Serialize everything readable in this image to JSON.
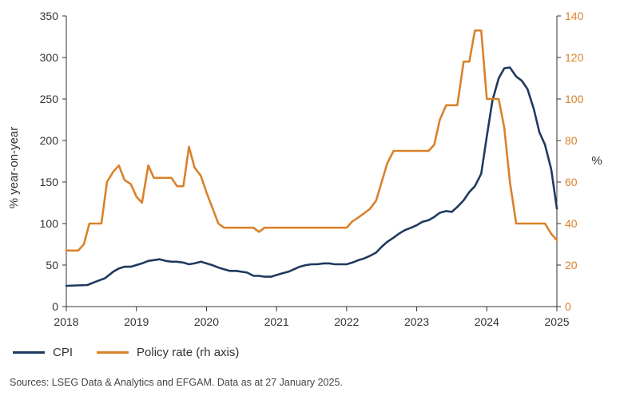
{
  "chart_data": {
    "type": "line",
    "x_ticks": [
      "2018",
      "2019",
      "2020",
      "2021",
      "2022",
      "2023",
      "2024",
      "2025"
    ],
    "y_left": {
      "label": "% year-on-year",
      "lim": [
        0,
        350
      ],
      "ticks": [
        "0",
        "50",
        "100",
        "150",
        "200",
        "250",
        "300",
        "350"
      ]
    },
    "y_right": {
      "label": "%",
      "lim": [
        0,
        140
      ],
      "ticks": [
        "0",
        "20",
        "40",
        "60",
        "80",
        "100",
        "120",
        "140"
      ]
    },
    "series": [
      {
        "name": "CPI",
        "axis": "left",
        "color": "#1f3a5f",
        "points": [
          [
            2018.0,
            25
          ],
          [
            2018.15,
            25.5
          ],
          [
            2018.3,
            26
          ],
          [
            2018.42,
            30
          ],
          [
            2018.55,
            34
          ],
          [
            2018.67,
            42
          ],
          [
            2018.75,
            46
          ],
          [
            2018.83,
            48
          ],
          [
            2018.92,
            48
          ],
          [
            2019.0,
            50
          ],
          [
            2019.08,
            52
          ],
          [
            2019.17,
            55
          ],
          [
            2019.25,
            56
          ],
          [
            2019.33,
            57
          ],
          [
            2019.42,
            55
          ],
          [
            2019.5,
            54
          ],
          [
            2019.58,
            54
          ],
          [
            2019.67,
            53
          ],
          [
            2019.75,
            51
          ],
          [
            2019.83,
            52
          ],
          [
            2019.92,
            54
          ],
          [
            2020.0,
            52
          ],
          [
            2020.08,
            50
          ],
          [
            2020.17,
            47
          ],
          [
            2020.25,
            45
          ],
          [
            2020.33,
            43
          ],
          [
            2020.42,
            43
          ],
          [
            2020.5,
            42
          ],
          [
            2020.58,
            41
          ],
          [
            2020.67,
            37
          ],
          [
            2020.75,
            37
          ],
          [
            2020.83,
            36
          ],
          [
            2020.92,
            36
          ],
          [
            2021.0,
            38
          ],
          [
            2021.08,
            40
          ],
          [
            2021.17,
            42
          ],
          [
            2021.25,
            45
          ],
          [
            2021.33,
            48
          ],
          [
            2021.42,
            50
          ],
          [
            2021.5,
            51
          ],
          [
            2021.58,
            51
          ],
          [
            2021.67,
            52
          ],
          [
            2021.75,
            52
          ],
          [
            2021.83,
            51
          ],
          [
            2021.92,
            51
          ],
          [
            2022.0,
            51
          ],
          [
            2022.08,
            53
          ],
          [
            2022.17,
            56
          ],
          [
            2022.25,
            58
          ],
          [
            2022.33,
            61
          ],
          [
            2022.42,
            65
          ],
          [
            2022.5,
            72
          ],
          [
            2022.58,
            78
          ],
          [
            2022.67,
            83
          ],
          [
            2022.75,
            88
          ],
          [
            2022.83,
            92
          ],
          [
            2022.92,
            95
          ],
          [
            2023.0,
            98
          ],
          [
            2023.08,
            102
          ],
          [
            2023.17,
            104
          ],
          [
            2023.25,
            108
          ],
          [
            2023.33,
            113
          ],
          [
            2023.42,
            115
          ],
          [
            2023.5,
            114
          ],
          [
            2023.58,
            120
          ],
          [
            2023.67,
            128
          ],
          [
            2023.75,
            138
          ],
          [
            2023.83,
            145
          ],
          [
            2023.92,
            160
          ],
          [
            2024.0,
            205
          ],
          [
            2024.08,
            248
          ],
          [
            2024.17,
            275
          ],
          [
            2024.25,
            287
          ],
          [
            2024.33,
            288
          ],
          [
            2024.42,
            277
          ],
          [
            2024.5,
            272
          ],
          [
            2024.58,
            262
          ],
          [
            2024.67,
            238
          ],
          [
            2024.75,
            210
          ],
          [
            2024.83,
            195
          ],
          [
            2024.92,
            165
          ],
          [
            2025.0,
            118
          ]
        ]
      },
      {
        "name": "Policy rate (rh axis)",
        "axis": "right",
        "color": "#d9822b",
        "points": [
          [
            2018.0,
            27
          ],
          [
            2018.17,
            27
          ],
          [
            2018.25,
            30
          ],
          [
            2018.33,
            40
          ],
          [
            2018.5,
            40
          ],
          [
            2018.58,
            60
          ],
          [
            2018.67,
            65
          ],
          [
            2018.75,
            68
          ],
          [
            2018.83,
            61
          ],
          [
            2018.92,
            59
          ],
          [
            2019.0,
            53
          ],
          [
            2019.08,
            50
          ],
          [
            2019.17,
            68
          ],
          [
            2019.25,
            62
          ],
          [
            2019.33,
            62
          ],
          [
            2019.5,
            62
          ],
          [
            2019.58,
            58
          ],
          [
            2019.67,
            58
          ],
          [
            2019.75,
            77
          ],
          [
            2019.83,
            67
          ],
          [
            2019.92,
            63
          ],
          [
            2020.0,
            55
          ],
          [
            2020.08,
            48
          ],
          [
            2020.17,
            40
          ],
          [
            2020.25,
            38
          ],
          [
            2020.33,
            38
          ],
          [
            2020.67,
            38
          ],
          [
            2020.75,
            36
          ],
          [
            2020.83,
            38
          ],
          [
            2021.0,
            38
          ],
          [
            2021.5,
            38
          ],
          [
            2022.0,
            38
          ],
          [
            2022.08,
            41
          ],
          [
            2022.17,
            43
          ],
          [
            2022.25,
            45
          ],
          [
            2022.33,
            47
          ],
          [
            2022.42,
            51
          ],
          [
            2022.5,
            60
          ],
          [
            2022.58,
            69
          ],
          [
            2022.67,
            75
          ],
          [
            2023.0,
            75
          ],
          [
            2023.17,
            75
          ],
          [
            2023.25,
            78
          ],
          [
            2023.33,
            90
          ],
          [
            2023.42,
            97
          ],
          [
            2023.58,
            97
          ],
          [
            2023.67,
            118
          ],
          [
            2023.75,
            118
          ],
          [
            2023.83,
            133
          ],
          [
            2023.92,
            133
          ],
          [
            2024.0,
            100
          ],
          [
            2024.17,
            100
          ],
          [
            2024.25,
            86
          ],
          [
            2024.33,
            60
          ],
          [
            2024.42,
            40
          ],
          [
            2024.83,
            40
          ],
          [
            2024.92,
            35
          ],
          [
            2025.0,
            32
          ]
        ]
      }
    ],
    "legend": "bottom-left",
    "grid": false
  },
  "source": "Sources: LSEG Data & Analytics and EFGAM. Data as at 27 January 2025."
}
